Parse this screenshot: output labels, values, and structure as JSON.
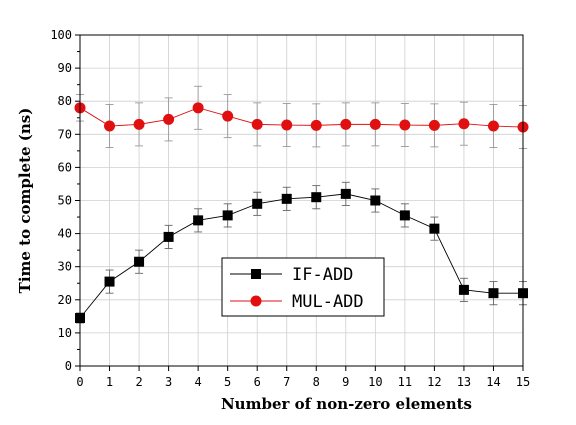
{
  "chart_data": {
    "type": "line",
    "xlabel": "Number of non-zero elements",
    "ylabel": "Time to complete (ns)",
    "xlim": [
      0,
      15
    ],
    "ylim": [
      0,
      100
    ],
    "x_ticks": [
      0,
      1,
      2,
      3,
      4,
      5,
      6,
      7,
      8,
      9,
      10,
      11,
      12,
      13,
      14,
      15
    ],
    "y_ticks": [
      0,
      10,
      20,
      30,
      40,
      50,
      60,
      70,
      80,
      90,
      100
    ],
    "grid": true,
    "legend_position": "center-left",
    "series": [
      {
        "name": "IF-ADD",
        "color": "#000000",
        "marker": "square",
        "x": [
          0,
          1,
          2,
          3,
          4,
          5,
          6,
          7,
          8,
          9,
          10,
          11,
          12,
          13,
          14,
          15
        ],
        "y": [
          14.5,
          25.5,
          31.5,
          39,
          44,
          45.5,
          49,
          50.5,
          51,
          52,
          50,
          45.5,
          41.5,
          23,
          22,
          22
        ],
        "err": [
          1.5,
          3.5,
          3.5,
          3.5,
          3.5,
          3.5,
          3.5,
          3.5,
          3.5,
          3.5,
          3.5,
          3.5,
          3.5,
          3.5,
          3.5,
          3.5
        ]
      },
      {
        "name": "MUL-ADD",
        "color": "#e01010",
        "marker": "circle",
        "x": [
          0,
          1,
          2,
          3,
          4,
          5,
          6,
          7,
          8,
          9,
          10,
          11,
          12,
          13,
          14,
          15
        ],
        "y": [
          78,
          72.5,
          73,
          74.5,
          78,
          75.5,
          73,
          72.8,
          72.7,
          73,
          73,
          72.8,
          72.7,
          73.2,
          72.5,
          72.2
        ],
        "err": [
          4,
          6.5,
          6.5,
          6.5,
          6.5,
          6.5,
          6.5,
          6.5,
          6.5,
          6.5,
          6.5,
          6.5,
          6.5,
          6.5,
          6.5,
          6.5
        ]
      }
    ]
  }
}
